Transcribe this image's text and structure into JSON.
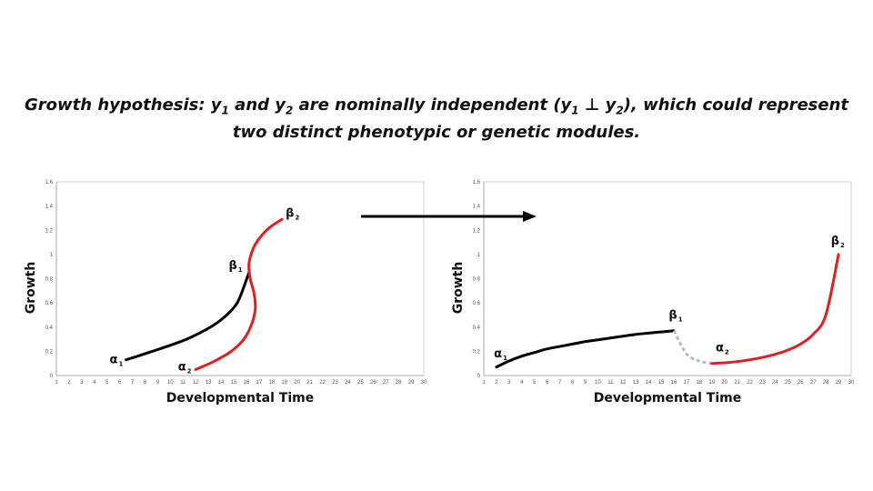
{
  "title": {
    "part1": "Growth hypothesis: y",
    "sub1": "1",
    "part2": " and y",
    "sub2": "2",
    "part3": " are nominally independent (y",
    "sub3": "1",
    "perp": " ⊥ ",
    "part4": "y",
    "sub4": "2",
    "part5": "), which could represent",
    "line2": "two distinct phenotypic or genetic modules."
  },
  "chart_data": [
    {
      "type": "line",
      "xlabel": "Developmental Time",
      "ylabel": "Growth",
      "xlim": [
        1,
        30
      ],
      "ylim": [
        0,
        1.6
      ],
      "xticks": [
        "1",
        "2",
        "3",
        "4",
        "5",
        "6",
        "7",
        "8",
        "9",
        "10",
        "11",
        "12",
        "13",
        "14",
        "15",
        "16",
        "17",
        "18",
        "19",
        "20",
        "21",
        "22",
        "23",
        "24",
        "25",
        "26",
        "27",
        "28",
        "29",
        "30"
      ],
      "yticks": [
        "0",
        "0.2",
        "0.4",
        "0.6",
        "0.8",
        "1",
        "1.2",
        "1.4",
        "1.6"
      ],
      "grid": false,
      "series": [
        {
          "color": "#000000",
          "style": "solid",
          "x": [
            6.5,
            8,
            10,
            11.5,
            13,
            14,
            15,
            15.5,
            16.2
          ],
          "y": [
            0.13,
            0.18,
            0.25,
            0.31,
            0.39,
            0.46,
            0.56,
            0.65,
            0.85
          ]
        },
        {
          "color": "#e02020",
          "style": "solid",
          "x": [
            12,
            13.5,
            14.8,
            15.8,
            16.4,
            16.7,
            16.6,
            16.3,
            16.2,
            16.5,
            17,
            17.8,
            18.8
          ],
          "y": [
            0.05,
            0.12,
            0.2,
            0.3,
            0.42,
            0.55,
            0.68,
            0.8,
            0.92,
            1.04,
            1.13,
            1.22,
            1.29
          ]
        }
      ],
      "annotations": [
        {
          "text": "α",
          "sub": "1",
          "x": 5.2,
          "y": 0.1
        },
        {
          "text": "β",
          "sub": "1",
          "x": 14.6,
          "y": 0.88
        },
        {
          "text": "α",
          "sub": "2",
          "x": 10.6,
          "y": 0.04
        },
        {
          "text": "β",
          "sub": "2",
          "x": 19.1,
          "y": 1.31
        }
      ]
    },
    {
      "type": "line",
      "xlabel": "Developmental Time",
      "ylabel": "Growth",
      "xlim": [
        1,
        30
      ],
      "ylim": [
        0,
        1.6
      ],
      "xticks": [
        "1",
        "2",
        "3",
        "4",
        "5",
        "6",
        "7",
        "8",
        "9",
        "10",
        "11",
        "12",
        "13",
        "14",
        "15",
        "16",
        "17",
        "18",
        "19",
        "20",
        "21",
        "22",
        "23",
        "24",
        "25",
        "26",
        "27",
        "28",
        "29",
        "30"
      ],
      "yticks": [
        "0",
        "0.2",
        "0.4",
        "0.6",
        "0.8",
        "1",
        "1.2",
        "1.4",
        "1.6"
      ],
      "grid": false,
      "series": [
        {
          "color": "#000000",
          "style": "solid",
          "x": [
            2,
            3,
            4,
            5,
            6,
            7,
            8,
            9,
            10,
            11,
            12,
            13,
            14,
            15,
            16
          ],
          "y": [
            0.07,
            0.12,
            0.16,
            0.19,
            0.22,
            0.24,
            0.26,
            0.28,
            0.295,
            0.31,
            0.325,
            0.34,
            0.35,
            0.36,
            0.37
          ]
        },
        {
          "color": "#bbbbbb",
          "style": "dashed",
          "x": [
            16,
            17,
            18,
            19
          ],
          "y": [
            0.37,
            0.18,
            0.12,
            0.1
          ]
        },
        {
          "color": "#e02020",
          "style": "solid",
          "x": [
            19,
            20,
            21,
            22,
            23,
            24,
            25,
            26,
            27,
            28,
            29
          ],
          "y": [
            0.1,
            0.105,
            0.115,
            0.13,
            0.15,
            0.175,
            0.21,
            0.26,
            0.34,
            0.5,
            1.0
          ]
        }
      ],
      "annotations": [
        {
          "text": "α",
          "sub": "1",
          "x": 1.8,
          "y": 0.15
        },
        {
          "text": "β",
          "sub": "1",
          "x": 15.6,
          "y": 0.47
        },
        {
          "text": "α",
          "sub": "2",
          "x": 19.3,
          "y": 0.2
        },
        {
          "text": "β",
          "sub": "2",
          "x": 28.4,
          "y": 1.08
        }
      ]
    }
  ]
}
